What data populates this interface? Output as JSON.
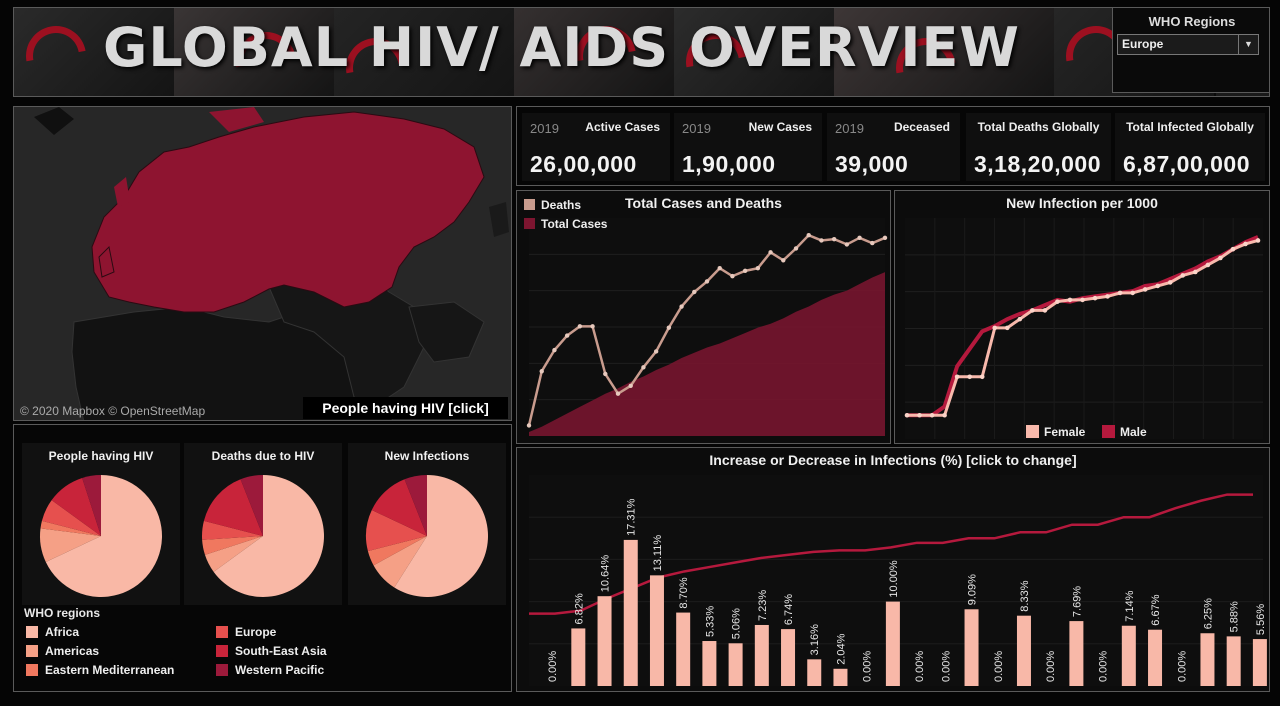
{
  "header": {
    "title": "GLOBAL HIV/ AIDS OVERVIEW"
  },
  "filter": {
    "label": "WHO Regions",
    "value": "Europe"
  },
  "map": {
    "credit": "© 2020 Mapbox © OpenStreetMap",
    "button_label": "People having HIV [click]",
    "highlight_color": "#8e1430"
  },
  "kpis": [
    {
      "year": "2019",
      "label": "Active Cases",
      "value": "26,00,000"
    },
    {
      "year": "2019",
      "label": "New Cases",
      "value": "1,90,000"
    },
    {
      "year": "2019",
      "label": "Deceased",
      "value": "39,000"
    },
    {
      "year": "",
      "label": "Total Deaths Globally",
      "value": "3,18,20,000"
    },
    {
      "year": "",
      "label": "Total Infected Globally",
      "value": "6,87,00,000"
    }
  ],
  "pies": {
    "titles": [
      "People having HIV",
      "Deaths due to HIV",
      "New Infections"
    ],
    "legend_title": "WHO regions"
  },
  "colors": {
    "africa": "#f9b8a6",
    "americas": "#f5a086",
    "eastern_mediterranean": "#f0785f",
    "europe": "#e6504e",
    "south_east_asia": "#c8243a",
    "western_pacific": "#9c1a3b",
    "deaths": "#c99c8e",
    "total_cases": "#7d1530",
    "female": "#f8b9ac",
    "male": "#b5193d"
  },
  "chart_data": [
    {
      "type": "pie",
      "title": "People having HIV",
      "labels": [
        "Africa",
        "Americas",
        "Eastern Mediterranean",
        "Europe",
        "South-East Asia",
        "Western Pacific"
      ],
      "values": [
        68,
        9,
        2,
        6,
        10,
        5
      ]
    },
    {
      "type": "pie",
      "title": "Deaths due to HIV",
      "labels": [
        "Africa",
        "Americas",
        "Eastern Mediterranean",
        "Europe",
        "South-East Asia",
        "Western Pacific"
      ],
      "values": [
        65,
        5,
        4,
        5,
        15,
        6
      ]
    },
    {
      "type": "pie",
      "title": "New Infections",
      "labels": [
        "Africa",
        "Americas",
        "Eastern Mediterranean",
        "Europe",
        "South-East Asia",
        "Western Pacific"
      ],
      "values": [
        59,
        8,
        4,
        11,
        12,
        6
      ]
    },
    {
      "type": "area",
      "title": "Total Cases and Deaths",
      "legend": [
        "Deaths",
        "Total Cases"
      ],
      "series": [
        {
          "name": "Deaths",
          "values": [
            8,
            49,
            65,
            76,
            83,
            83,
            47,
            32,
            38,
            52,
            64,
            82,
            98,
            109,
            117,
            127,
            121,
            125,
            127,
            139,
            133,
            142,
            152,
            148,
            149,
            145,
            150,
            146,
            150
          ]
        },
        {
          "name": "Total Cases",
          "values": [
            3,
            7,
            12,
            17,
            22,
            27,
            32,
            36,
            41,
            45,
            50,
            54,
            59,
            63,
            67,
            70,
            74,
            78,
            82,
            85,
            89,
            94,
            98,
            103,
            107,
            110,
            115,
            120,
            124
          ]
        }
      ],
      "ylim": [
        0,
        165
      ]
    },
    {
      "type": "line",
      "title": "New Infection per 1000",
      "legend": [
        "Female",
        "Male"
      ],
      "series": [
        {
          "name": "Female",
          "values": [
            0,
            0,
            0,
            0,
            22,
            22,
            22,
            50,
            50,
            55,
            60,
            60,
            65,
            66,
            66,
            67,
            68,
            70,
            70,
            72,
            74,
            76,
            80,
            82,
            86,
            90,
            95,
            98,
            100
          ]
        },
        {
          "name": "Male",
          "values": [
            0,
            0,
            0,
            5,
            28,
            38,
            48,
            51,
            55,
            58,
            60,
            63,
            66,
            65,
            67,
            68,
            69,
            70,
            71,
            74,
            75,
            78,
            81,
            84,
            88,
            91,
            95,
            99,
            102
          ]
        }
      ],
      "ylim": [
        -5,
        110
      ]
    },
    {
      "type": "bar",
      "title": "Increase or Decrease in Infections (%) [click to change]",
      "values": [
        0,
        6.82,
        10.64,
        17.31,
        13.11,
        8.7,
        5.33,
        5.06,
        7.23,
        6.74,
        3.16,
        2.04,
        0,
        10.0,
        0,
        0,
        9.09,
        0,
        8.33,
        0,
        7.69,
        0,
        7.14,
        6.67,
        0,
        6.25,
        5.88,
        5.56
      ],
      "labels": [
        "0.00%",
        "6.82%",
        "10.64%",
        "17.31%",
        "13.11%",
        "8.70%",
        "5.33%",
        "5.06%",
        "7.23%",
        "6.74%",
        "3.16%",
        "2.04%",
        "0.00%",
        "10.00%",
        "0.00%",
        "0.00%",
        "9.09%",
        "0.00%",
        "8.33%",
        "0.00%",
        "7.69%",
        "0.00%",
        "7.14%",
        "6.67%",
        "0.00%",
        "6.25%",
        "5.88%",
        "5.56%"
      ],
      "line": [
        48,
        48,
        50,
        58,
        65,
        72,
        76,
        79,
        82,
        85,
        87,
        89,
        90,
        90,
        92,
        95,
        95,
        98,
        98,
        102,
        102,
        107,
        107,
        112,
        112,
        118,
        123,
        127,
        127
      ],
      "ylim": [
        0,
        25
      ]
    }
  ]
}
